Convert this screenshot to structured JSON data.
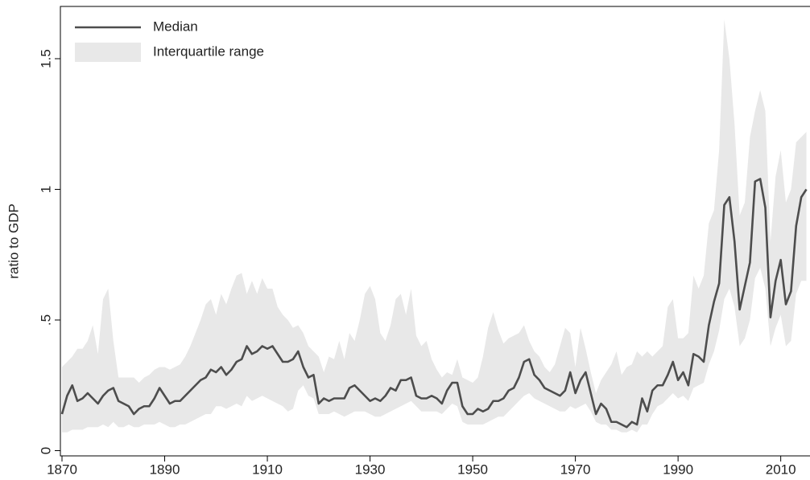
{
  "chart_data": {
    "type": "line",
    "y_label": "ratio to GDP",
    "x": [
      1870,
      1871,
      1872,
      1873,
      1874,
      1875,
      1876,
      1877,
      1878,
      1879,
      1880,
      1881,
      1882,
      1883,
      1884,
      1885,
      1886,
      1887,
      1888,
      1889,
      1890,
      1891,
      1892,
      1893,
      1894,
      1895,
      1896,
      1897,
      1898,
      1899,
      1900,
      1901,
      1902,
      1903,
      1904,
      1905,
      1906,
      1907,
      1908,
      1909,
      1910,
      1911,
      1912,
      1913,
      1914,
      1915,
      1916,
      1917,
      1918,
      1919,
      1920,
      1921,
      1922,
      1923,
      1924,
      1925,
      1926,
      1927,
      1928,
      1929,
      1930,
      1931,
      1932,
      1933,
      1934,
      1935,
      1936,
      1937,
      1938,
      1939,
      1940,
      1941,
      1942,
      1943,
      1944,
      1945,
      1946,
      1947,
      1948,
      1949,
      1950,
      1951,
      1952,
      1953,
      1954,
      1955,
      1956,
      1957,
      1958,
      1959,
      1960,
      1961,
      1962,
      1963,
      1964,
      1965,
      1966,
      1967,
      1968,
      1969,
      1970,
      1971,
      1972,
      1973,
      1974,
      1975,
      1976,
      1977,
      1978,
      1979,
      1980,
      1981,
      1982,
      1983,
      1984,
      1985,
      1986,
      1987,
      1988,
      1989,
      1990,
      1991,
      1992,
      1993,
      1994,
      1995,
      1996,
      1997,
      1998,
      1999,
      2000,
      2001,
      2002,
      2003,
      2004,
      2005,
      2006,
      2007,
      2008,
      2009,
      2010,
      2011,
      2012,
      2013,
      2014,
      2015
    ],
    "series": [
      {
        "name": "Median",
        "color": "#4d4d4d",
        "values": [
          0.14,
          0.21,
          0.25,
          0.19,
          0.2,
          0.22,
          0.2,
          0.18,
          0.21,
          0.23,
          0.24,
          0.19,
          0.18,
          0.17,
          0.14,
          0.16,
          0.17,
          0.17,
          0.2,
          0.24,
          0.21,
          0.18,
          0.19,
          0.19,
          0.21,
          0.23,
          0.25,
          0.27,
          0.28,
          0.31,
          0.3,
          0.32,
          0.29,
          0.31,
          0.34,
          0.35,
          0.4,
          0.37,
          0.38,
          0.4,
          0.39,
          0.4,
          0.37,
          0.34,
          0.34,
          0.35,
          0.38,
          0.32,
          0.28,
          0.29,
          0.18,
          0.2,
          0.19,
          0.2,
          0.2,
          0.2,
          0.24,
          0.25,
          0.23,
          0.21,
          0.19,
          0.2,
          0.19,
          0.21,
          0.24,
          0.23,
          0.27,
          0.27,
          0.28,
          0.21,
          0.2,
          0.2,
          0.21,
          0.2,
          0.18,
          0.23,
          0.26,
          0.26,
          0.17,
          0.14,
          0.14,
          0.16,
          0.15,
          0.16,
          0.19,
          0.19,
          0.2,
          0.23,
          0.24,
          0.28,
          0.34,
          0.35,
          0.29,
          0.27,
          0.24,
          0.23,
          0.22,
          0.21,
          0.23,
          0.3,
          0.22,
          0.27,
          0.3,
          0.22,
          0.14,
          0.18,
          0.16,
          0.11,
          0.11,
          0.1,
          0.09,
          0.11,
          0.1,
          0.2,
          0.15,
          0.23,
          0.25,
          0.25,
          0.29,
          0.34,
          0.27,
          0.3,
          0.25,
          0.37,
          0.36,
          0.34,
          0.48,
          0.57,
          0.64,
          0.94,
          0.97,
          0.8,
          0.54,
          0.63,
          0.72,
          1.03,
          1.04,
          0.93,
          0.51,
          0.65,
          0.73,
          0.56,
          0.61,
          0.86,
          0.97,
          1.0
        ]
      },
      {
        "name": "Interquartile range",
        "color": "#e8e8e8",
        "lower": [
          0.07,
          0.07,
          0.08,
          0.08,
          0.08,
          0.09,
          0.09,
          0.09,
          0.1,
          0.09,
          0.11,
          0.09,
          0.09,
          0.1,
          0.09,
          0.09,
          0.1,
          0.1,
          0.1,
          0.11,
          0.1,
          0.09,
          0.09,
          0.1,
          0.1,
          0.11,
          0.12,
          0.13,
          0.14,
          0.14,
          0.17,
          0.17,
          0.16,
          0.17,
          0.18,
          0.17,
          0.21,
          0.19,
          0.2,
          0.21,
          0.2,
          0.19,
          0.18,
          0.17,
          0.15,
          0.16,
          0.23,
          0.25,
          0.21,
          0.2,
          0.14,
          0.14,
          0.14,
          0.15,
          0.14,
          0.13,
          0.14,
          0.15,
          0.15,
          0.15,
          0.14,
          0.13,
          0.13,
          0.14,
          0.15,
          0.16,
          0.17,
          0.18,
          0.19,
          0.17,
          0.15,
          0.15,
          0.15,
          0.15,
          0.14,
          0.16,
          0.18,
          0.17,
          0.11,
          0.1,
          0.1,
          0.1,
          0.1,
          0.11,
          0.12,
          0.13,
          0.13,
          0.15,
          0.17,
          0.19,
          0.21,
          0.22,
          0.2,
          0.19,
          0.18,
          0.17,
          0.16,
          0.15,
          0.15,
          0.17,
          0.16,
          0.17,
          0.18,
          0.15,
          0.11,
          0.1,
          0.1,
          0.08,
          0.08,
          0.07,
          0.07,
          0.08,
          0.07,
          0.1,
          0.1,
          0.14,
          0.17,
          0.18,
          0.2,
          0.22,
          0.2,
          0.21,
          0.19,
          0.24,
          0.25,
          0.26,
          0.33,
          0.38,
          0.46,
          0.58,
          0.62,
          0.55,
          0.4,
          0.43,
          0.5,
          0.66,
          0.7,
          0.62,
          0.4,
          0.47,
          0.52,
          0.4,
          0.42,
          0.6,
          0.65,
          0.65
        ],
        "upper": [
          0.32,
          0.34,
          0.36,
          0.39,
          0.39,
          0.42,
          0.48,
          0.37,
          0.58,
          0.62,
          0.42,
          0.28,
          0.28,
          0.28,
          0.28,
          0.26,
          0.28,
          0.29,
          0.31,
          0.32,
          0.32,
          0.31,
          0.32,
          0.33,
          0.36,
          0.4,
          0.45,
          0.5,
          0.56,
          0.58,
          0.52,
          0.6,
          0.56,
          0.62,
          0.67,
          0.68,
          0.6,
          0.65,
          0.6,
          0.66,
          0.62,
          0.62,
          0.55,
          0.52,
          0.5,
          0.47,
          0.48,
          0.45,
          0.4,
          0.38,
          0.36,
          0.3,
          0.36,
          0.35,
          0.42,
          0.35,
          0.45,
          0.42,
          0.5,
          0.6,
          0.63,
          0.58,
          0.45,
          0.42,
          0.48,
          0.58,
          0.6,
          0.52,
          0.62,
          0.44,
          0.4,
          0.42,
          0.35,
          0.31,
          0.28,
          0.3,
          0.29,
          0.35,
          0.28,
          0.27,
          0.26,
          0.28,
          0.36,
          0.47,
          0.53,
          0.46,
          0.41,
          0.43,
          0.44,
          0.45,
          0.48,
          0.42,
          0.38,
          0.36,
          0.32,
          0.3,
          0.33,
          0.4,
          0.47,
          0.45,
          0.32,
          0.47,
          0.39,
          0.3,
          0.22,
          0.27,
          0.3,
          0.33,
          0.38,
          0.29,
          0.32,
          0.33,
          0.38,
          0.36,
          0.38,
          0.36,
          0.38,
          0.4,
          0.55,
          0.58,
          0.43,
          0.43,
          0.45,
          0.67,
          0.62,
          0.67,
          0.87,
          0.92,
          1.15,
          1.65,
          1.5,
          1.25,
          0.9,
          0.95,
          1.2,
          1.3,
          1.38,
          1.3,
          0.8,
          1.05,
          1.15,
          0.95,
          1.0,
          1.18,
          1.2,
          1.22
        ]
      }
    ],
    "xlim": [
      1870,
      2015.7
    ],
    "xticks": [
      1870,
      1890,
      1910,
      1930,
      1950,
      1970,
      1990,
      2010
    ],
    "ylim": [
      -0.02,
      1.7
    ],
    "yticks": [
      0,
      {
        "value": 0.5,
        "label": ".5"
      },
      1,
      {
        "value": 1.5,
        "label": "1.5"
      }
    ],
    "legend": "top-left"
  }
}
